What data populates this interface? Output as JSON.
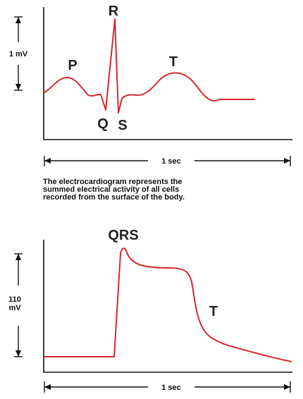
{
  "top_panel": {
    "voltage_scale": "1 mV",
    "time_scale": "1 sec",
    "labels": {
      "p": "P",
      "q": "Q",
      "r": "R",
      "s": "S",
      "t": "T"
    },
    "trace_color": "#d8282e"
  },
  "caption": {
    "line1": "The electrocardiogram represents the",
    "line2": "summed electrical activity of all cells",
    "line3": "recorded from the surface of the body."
  },
  "bottom_panel": {
    "voltage_scale_value": "110",
    "voltage_scale_unit": "mV",
    "time_scale": "1 sec",
    "labels": {
      "qrs": "QRS",
      "t": "T"
    },
    "trace_color": "#d8282e"
  }
}
